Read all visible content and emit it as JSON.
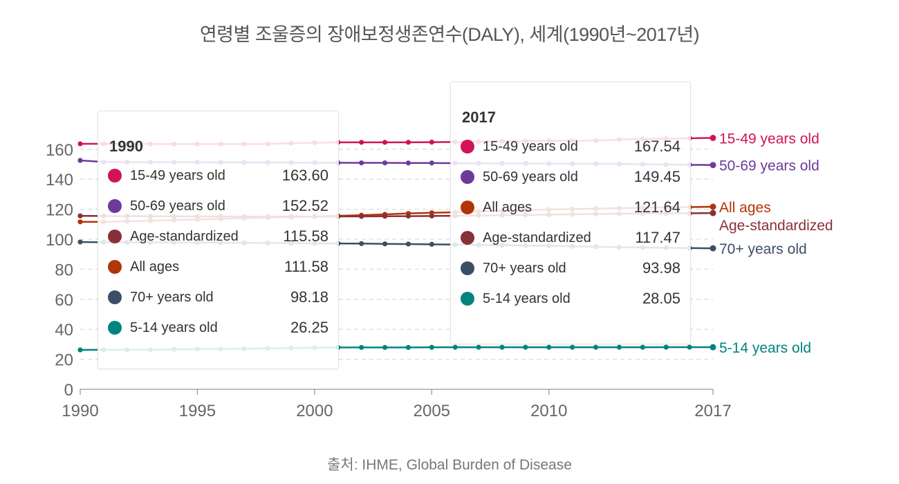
{
  "title": "연령별 조울증의 장애보정생존연수(DALY), 세계(1990년~2017년)",
  "source": "출처: IHME, Global Burden of Disease",
  "chart_data": {
    "type": "line",
    "xlim": [
      1990,
      2017
    ],
    "ylim": [
      0,
      170
    ],
    "x_ticks": [
      1990,
      1995,
      2000,
      2005,
      2010,
      2017
    ],
    "y_ticks": [
      0,
      20,
      40,
      60,
      80,
      100,
      120,
      140,
      160
    ],
    "grid": true,
    "x": [
      1990,
      1991,
      1992,
      1993,
      1994,
      1995,
      1996,
      1997,
      1998,
      1999,
      2000,
      2001,
      2002,
      2003,
      2004,
      2005,
      2006,
      2007,
      2008,
      2009,
      2010,
      2011,
      2012,
      2013,
      2014,
      2015,
      2016,
      2017
    ],
    "series": [
      {
        "name": "15-49 years old",
        "color": "#d1145a",
        "values": [
          163.6,
          163.6,
          163.5,
          163.5,
          163.4,
          163.4,
          163.4,
          163.4,
          163.5,
          164.0,
          164.3,
          164.6,
          164.6,
          164.6,
          164.6,
          164.7,
          164.8,
          165.0,
          165.3,
          165.4,
          165.6,
          165.7,
          165.8,
          166.4,
          166.9,
          167.0,
          167.3,
          167.54
        ]
      },
      {
        "name": "50-69 years old",
        "color": "#6d3a9c",
        "values": [
          152.52,
          151.5,
          151.4,
          151.4,
          151.3,
          151.3,
          151.2,
          151.2,
          151.1,
          151.1,
          151.0,
          151.0,
          150.9,
          150.9,
          150.8,
          150.8,
          150.7,
          150.6,
          150.5,
          150.5,
          150.4,
          150.3,
          150.3,
          150.2,
          150.0,
          149.8,
          149.6,
          149.45
        ]
      },
      {
        "name": "All ages",
        "color": "#b13507",
        "values": [
          111.58,
          111.6,
          112.0,
          112.4,
          112.8,
          113.2,
          113.6,
          114.0,
          114.4,
          114.8,
          115.2,
          115.6,
          116.0,
          116.6,
          117.2,
          117.6,
          118.0,
          118.5,
          119.0,
          119.4,
          119.8,
          120.1,
          120.4,
          120.7,
          121.0,
          121.2,
          121.4,
          121.64
        ]
      },
      {
        "name": "Age-standardized",
        "color": "#883039",
        "values": [
          115.58,
          115.5,
          115.4,
          115.3,
          115.3,
          115.2,
          115.2,
          115.1,
          115.1,
          115.1,
          115.1,
          115.2,
          115.2,
          115.3,
          115.4,
          115.5,
          115.6,
          115.8,
          116.0,
          116.2,
          116.4,
          116.6,
          116.8,
          117.0,
          117.1,
          117.2,
          117.3,
          117.47
        ]
      },
      {
        "name": "70+ years old",
        "color": "#3c4e66",
        "values": [
          98.18,
          98.0,
          97.9,
          97.9,
          97.9,
          97.8,
          97.7,
          97.6,
          97.5,
          97.4,
          97.3,
          97.2,
          97.1,
          96.9,
          96.8,
          96.6,
          96.4,
          96.2,
          96.0,
          95.8,
          95.6,
          95.3,
          95.0,
          94.7,
          94.5,
          94.3,
          94.1,
          93.98
        ]
      },
      {
        "name": "5-14 years old",
        "color": "#00847e",
        "values": [
          26.25,
          26.3,
          26.3,
          26.4,
          26.6,
          26.8,
          26.9,
          27.0,
          27.2,
          27.5,
          27.7,
          27.9,
          27.9,
          27.9,
          27.9,
          28.0,
          28.0,
          28.0,
          28.0,
          28.0,
          28.0,
          28.0,
          28.0,
          28.0,
          28.0,
          28.05,
          28.05,
          28.05
        ]
      }
    ],
    "end_labels": [
      "15-49 years old",
      "50-69 years old",
      "All ages",
      "Age-standardized",
      "70+ years old",
      "5-14 years old"
    ],
    "tooltips": [
      {
        "year": "1990",
        "rows": [
          {
            "name": "15-49 years old",
            "value": "163.60",
            "color": "#d1145a"
          },
          {
            "name": "50-69 years old",
            "value": "152.52",
            "color": "#6d3a9c"
          },
          {
            "name": "Age-standardized",
            "value": "115.58",
            "color": "#883039"
          },
          {
            "name": "All ages",
            "value": "111.58",
            "color": "#b13507"
          },
          {
            "name": "70+ years old",
            "value": "98.18",
            "color": "#3c4e66"
          },
          {
            "name": "5-14 years old",
            "value": "26.25",
            "color": "#00847e"
          }
        ]
      },
      {
        "year": "2017",
        "rows": [
          {
            "name": "15-49 years old",
            "value": "167.54",
            "color": "#d1145a"
          },
          {
            "name": "50-69 years old",
            "value": "149.45",
            "color": "#6d3a9c"
          },
          {
            "name": "All ages",
            "value": "121.64",
            "color": "#b13507"
          },
          {
            "name": "Age-standardized",
            "value": "117.47",
            "color": "#883039"
          },
          {
            "name": "70+ years old",
            "value": "93.98",
            "color": "#3c4e66"
          },
          {
            "name": "5-14 years old",
            "value": "28.05",
            "color": "#00847e"
          }
        ]
      }
    ]
  }
}
